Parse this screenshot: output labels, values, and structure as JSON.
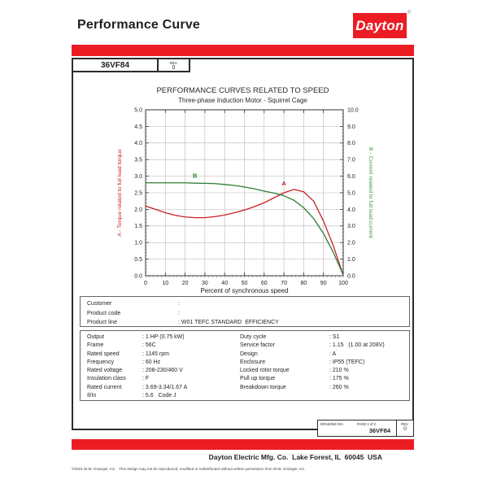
{
  "header": {
    "title": "Performance Curve",
    "logo_text": "Dayton",
    "registered_mark": "®"
  },
  "brand": {
    "red": "#ec1c24"
  },
  "model_box": {
    "model": "36VF84",
    "rev_label": "REV.",
    "rev_value": "0"
  },
  "chart_data": {
    "type": "line",
    "title": "PERFORMANCE CURVES RELATED TO SPEED",
    "subtitle": "Three-phase Induction Motor - Squirrel Cage",
    "xlabel": "Percent of synchronous speed",
    "x_range": [
      0,
      100
    ],
    "x_tick_step": 10,
    "grid": true,
    "left_axis": {
      "label": "A - Torque related to full load torque",
      "range": [
        0,
        5
      ],
      "tick_step": 0.5,
      "color": "#cc2027"
    },
    "right_axis": {
      "label": "B - Current related to full load current",
      "range": [
        0,
        10
      ],
      "tick_step": 1.0,
      "color": "#3f9a47"
    },
    "x": [
      0,
      5,
      10,
      15,
      20,
      25,
      30,
      35,
      40,
      45,
      50,
      55,
      60,
      65,
      70,
      75,
      80,
      85,
      90,
      95,
      100
    ],
    "series": [
      {
        "name": "A",
        "axis": "left",
        "color": "#cc2027",
        "values": [
          2.1,
          2.0,
          1.9,
          1.82,
          1.77,
          1.75,
          1.75,
          1.78,
          1.83,
          1.9,
          1.98,
          2.08,
          2.2,
          2.35,
          2.5,
          2.6,
          2.53,
          2.25,
          1.65,
          0.9,
          0.02
        ]
      },
      {
        "name": "B",
        "axis": "right",
        "color": "#2f7d36",
        "values": [
          5.6,
          5.6,
          5.6,
          5.6,
          5.6,
          5.58,
          5.57,
          5.55,
          5.5,
          5.44,
          5.35,
          5.24,
          5.1,
          4.98,
          4.82,
          4.55,
          4.1,
          3.45,
          2.55,
          1.4,
          0.05
        ]
      }
    ],
    "series_labels": [
      {
        "text": "A",
        "x": 70,
        "y_left": 2.72,
        "color": "#cc2027"
      },
      {
        "text": "B",
        "x": 25,
        "y_left": 2.95,
        "color": "#2f7d36"
      }
    ]
  },
  "customer_table": {
    "rows": [
      {
        "label": "Customer",
        "value": ""
      },
      {
        "label": "Product code",
        "value": ""
      },
      {
        "label": "Product line",
        "value": "W01 TEFC STANDARD  EFFICIENCY"
      }
    ]
  },
  "specs": {
    "left_rows": [
      {
        "label": "Output",
        "value": "1 HP (0.75 kW)"
      },
      {
        "label": "Frame",
        "value": "56C"
      },
      {
        "label": "Rated speed",
        "value": "1145 rpm"
      },
      {
        "label": "Frequency",
        "value": "60 Hz"
      },
      {
        "label": "Rated voltage",
        "value": "208-230/460 V"
      },
      {
        "label": "Insulation class",
        "value": "F"
      },
      {
        "label": "Rated current",
        "value": "3.69-3.34/1.67 A"
      },
      {
        "label": "Il/In",
        "value": "5.6   Code J"
      }
    ],
    "right_rows": [
      {
        "label": "Duty cycle",
        "value": "S1"
      },
      {
        "label": "Service factor",
        "value": "1.15   (1.00 at 208V)"
      },
      {
        "label": "Design",
        "value": "A"
      },
      {
        "label": "Enclosure",
        "value": "IP55 (TEFC)"
      },
      {
        "label": "Locked rotor torque",
        "value": "210 %"
      },
      {
        "label": "Pull up torque",
        "value": "175 %"
      },
      {
        "label": "Breakdown torque",
        "value": "260 %"
      }
    ]
  },
  "drawing_box": {
    "drawing_no_label": "DRAWING NO.",
    "page_label": "PAGE 1 of 2",
    "drawing_no_value": "36VF84",
    "rev_label": "REV.",
    "rev_value": "0"
  },
  "footer": {
    "company_line": "Dayton Electric Mfg. Co.  Lake Forest, IL  60045  USA",
    "copyright": "©2015 W.W. Grainger, Inc.   This design may not be reproduced, modified or redistributed without written permission from W.W. Grainger, Inc."
  }
}
